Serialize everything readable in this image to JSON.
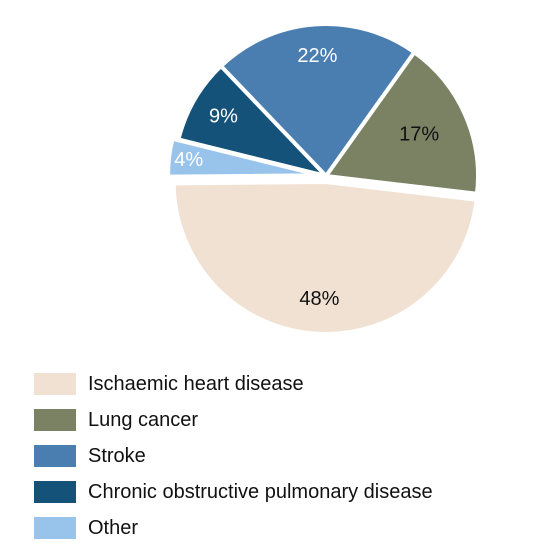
{
  "chart_data": {
    "type": "pie",
    "title": "",
    "categories": [
      "Ischaemic heart disease",
      "Lung cancer",
      "Stroke",
      "Chronic obstructive pulmonary disease",
      "Other"
    ],
    "values": [
      48,
      17,
      22,
      9,
      4
    ],
    "labels": [
      "48%",
      "17%",
      "22%",
      "9%",
      "4%"
    ],
    "colors": [
      "#f0e1d3",
      "#7b8264",
      "#4a7eb0",
      "#14527a",
      "#98c3ea"
    ],
    "label_colors": [
      "#111111",
      "#111111",
      "#ffffff",
      "#ffffff",
      "#ffffff"
    ],
    "legend_position": "bottom",
    "legend": [
      {
        "label": "Ischaemic heart disease",
        "color": "#f0e1d3"
      },
      {
        "label": "Lung cancer",
        "color": "#7b8264"
      },
      {
        "label": "Stroke",
        "color": "#4a7eb0"
      },
      {
        "label": "Chronic obstructive pulmonary disease",
        "color": "#14527a"
      },
      {
        "label": "Other",
        "color": "#98c3ea"
      }
    ]
  }
}
